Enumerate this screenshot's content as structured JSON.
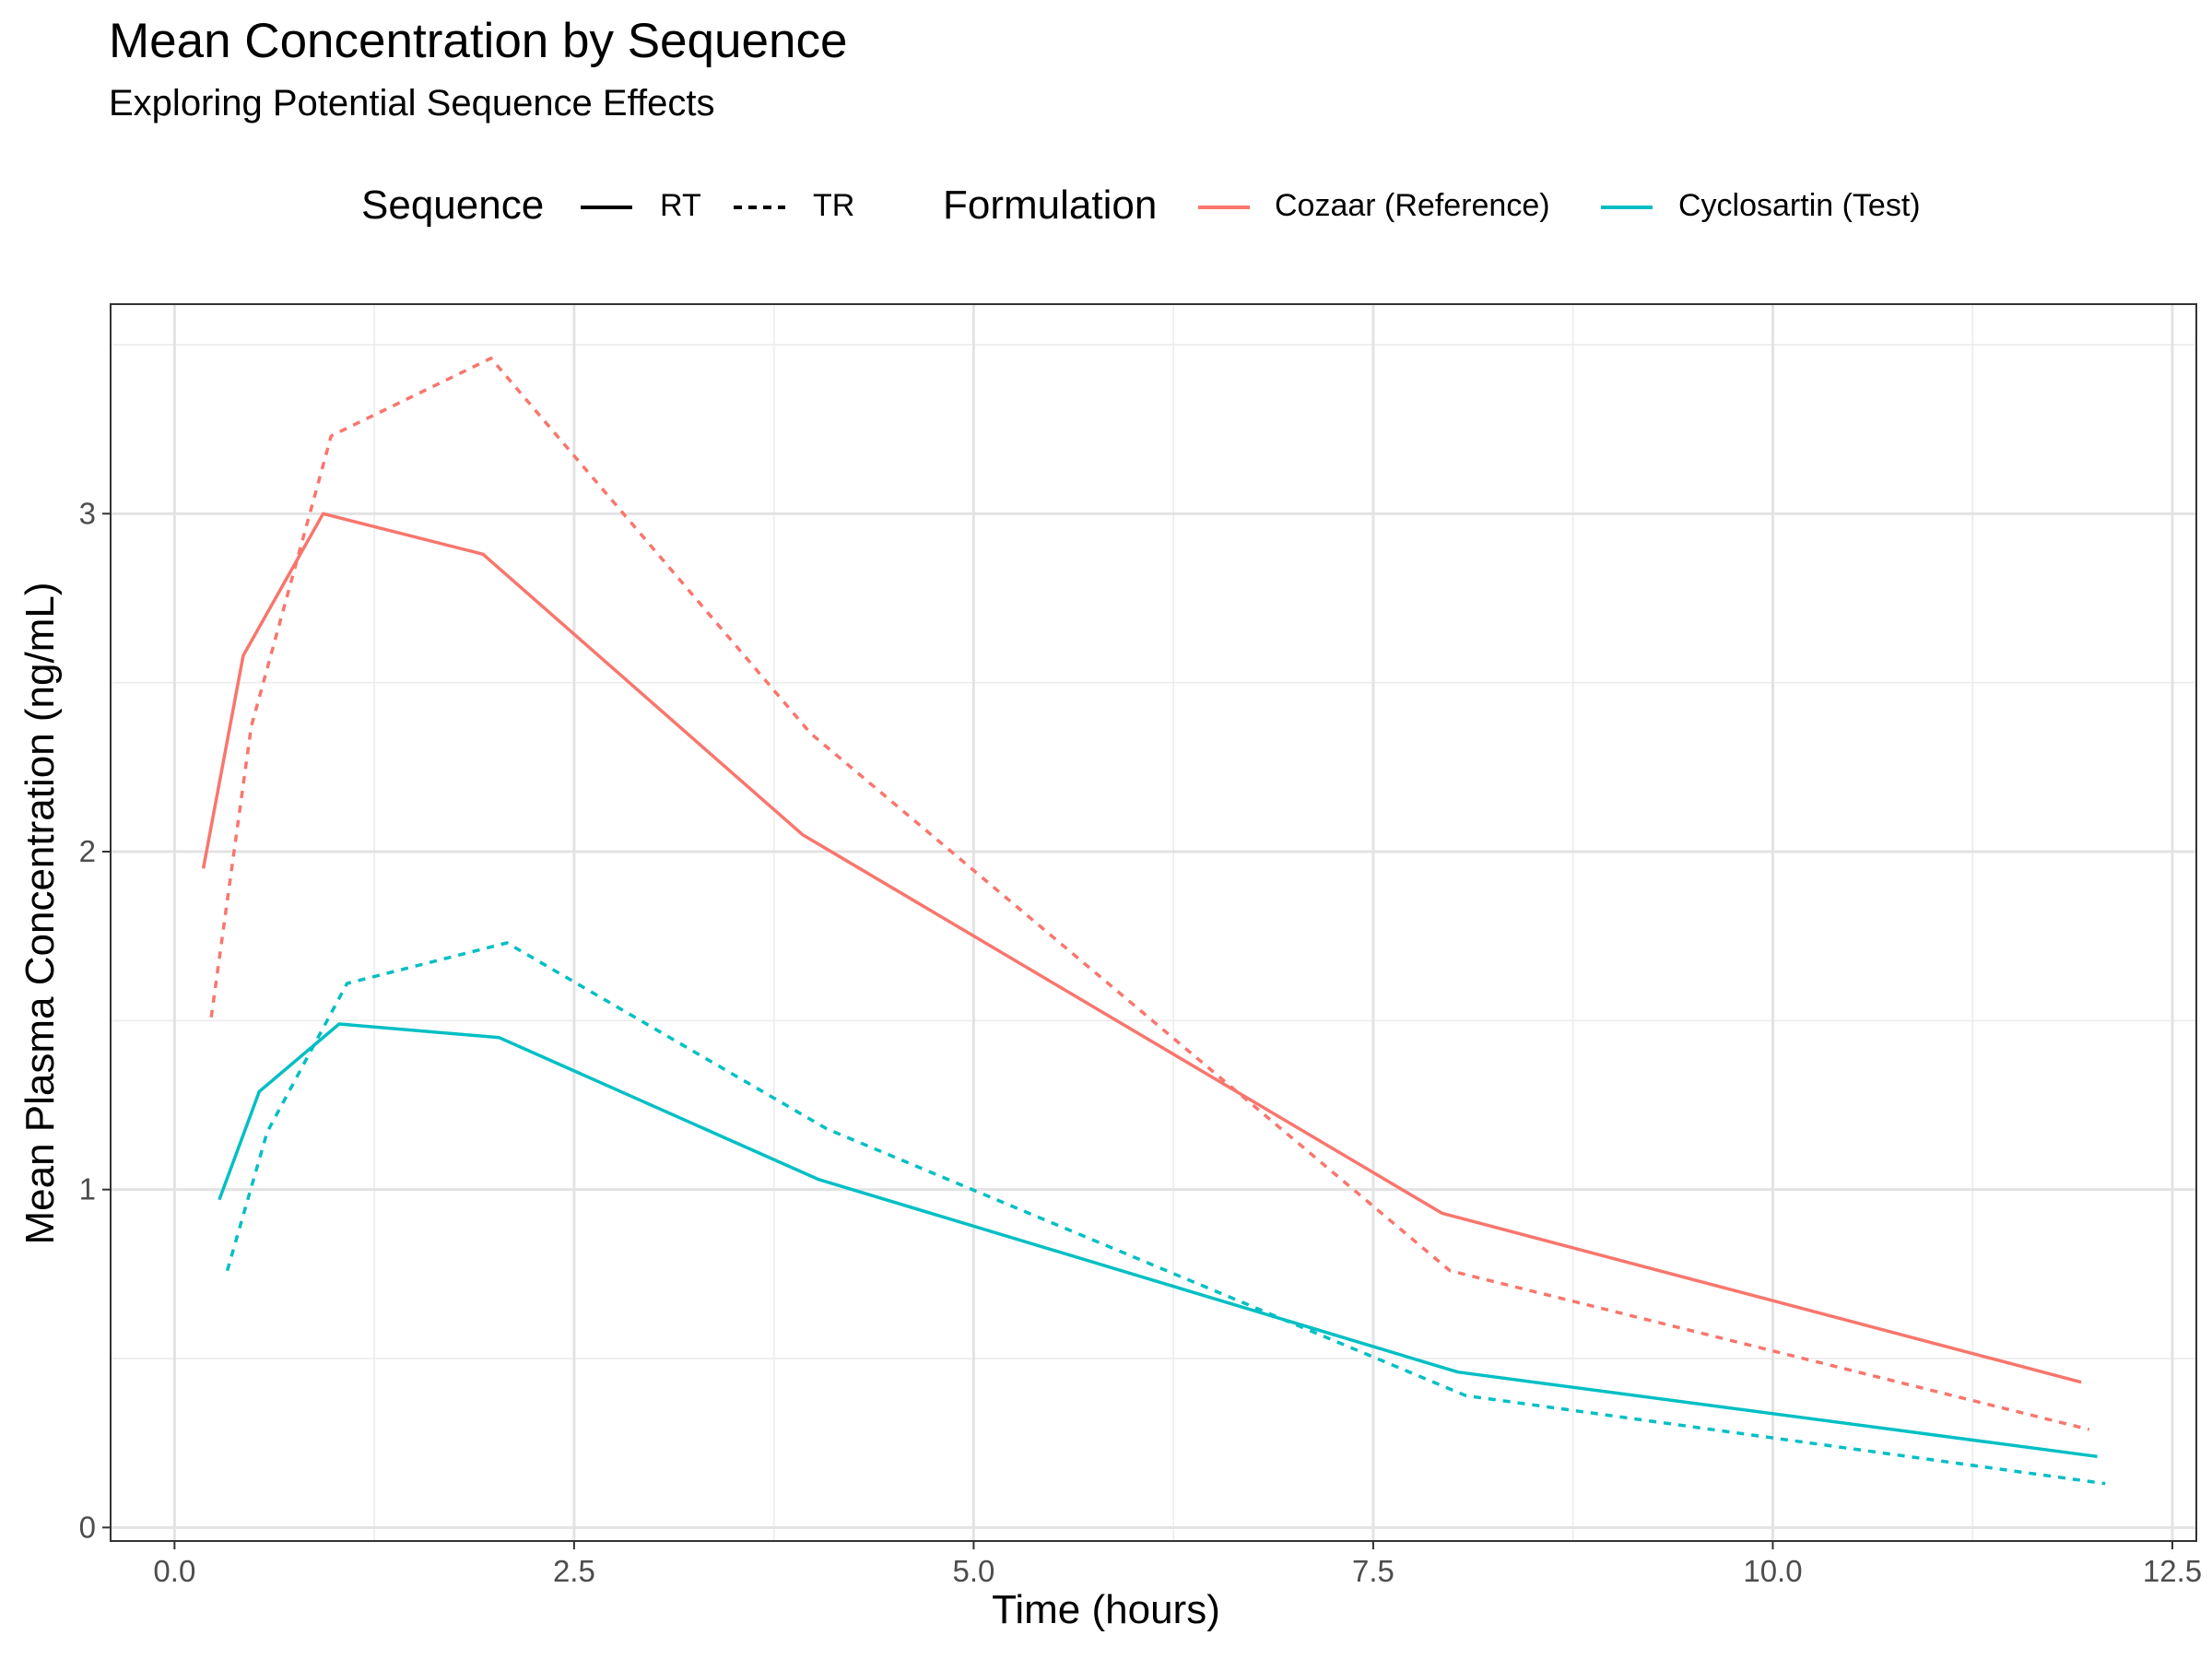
{
  "chart_data": {
    "type": "line",
    "title": "Mean Concentration by Sequence",
    "subtitle": "Exploring Potential Sequence Effects",
    "xlabel": "Time (hours)",
    "ylabel": "Mean Plasma Concentration (ng/mL)",
    "xlim": [
      -0.4,
      12.65
    ],
    "ylim": [
      -0.04,
      3.62
    ],
    "x_ticks": [
      0.0,
      2.5,
      5.0,
      7.5,
      10.0,
      12.5
    ],
    "x_tick_labels": [
      "0.0",
      "2.5",
      "5.0",
      "7.5",
      "10.0",
      "12.5"
    ],
    "y_ticks": [
      0,
      1,
      2,
      3
    ],
    "y_tick_labels": [
      "0",
      "1",
      "2",
      "3"
    ],
    "grid": true,
    "legend_position": "top",
    "legend": {
      "sequence_title": "Sequence",
      "sequence_items": [
        {
          "label": "RT",
          "linetype": "solid"
        },
        {
          "label": "TR",
          "linetype": "dashed"
        }
      ],
      "formulation_title": "Formulation",
      "formulation_items": [
        {
          "label": "Cozaar (Reference)",
          "color": "#F8766D"
        },
        {
          "label": "Cyclosartin (Test)",
          "color": "#00BFC4"
        }
      ]
    },
    "series": [
      {
        "formulation": "Cozaar (Reference)",
        "sequence": "RT",
        "color": "#F8766D",
        "linetype": "solid",
        "x": [
          0.18,
          0.43,
          0.93,
          1.93,
          3.93,
          7.93,
          11.93
        ],
        "y": [
          1.95,
          2.58,
          3.0,
          2.88,
          2.05,
          0.93,
          0.43
        ]
      },
      {
        "formulation": "Cozaar (Reference)",
        "sequence": "TR",
        "color": "#F8766D",
        "linetype": "dashed",
        "x": [
          0.23,
          0.48,
          0.98,
          1.98,
          3.98,
          7.98,
          11.98
        ],
        "y": [
          1.51,
          2.37,
          3.23,
          3.46,
          2.35,
          0.76,
          0.29
        ]
      },
      {
        "formulation": "Cyclosartin (Test)",
        "sequence": "RT",
        "color": "#00BFC4",
        "linetype": "solid",
        "x": [
          0.28,
          0.53,
          1.03,
          2.03,
          4.03,
          8.03,
          12.03
        ],
        "y": [
          0.97,
          1.29,
          1.49,
          1.45,
          1.03,
          0.46,
          0.21
        ]
      },
      {
        "formulation": "Cyclosartin (Test)",
        "sequence": "TR",
        "color": "#00BFC4",
        "linetype": "dashed",
        "x": [
          0.33,
          0.58,
          1.08,
          2.08,
          4.08,
          8.08,
          12.08
        ],
        "y": [
          0.76,
          1.17,
          1.61,
          1.73,
          1.18,
          0.39,
          0.13
        ]
      }
    ]
  }
}
